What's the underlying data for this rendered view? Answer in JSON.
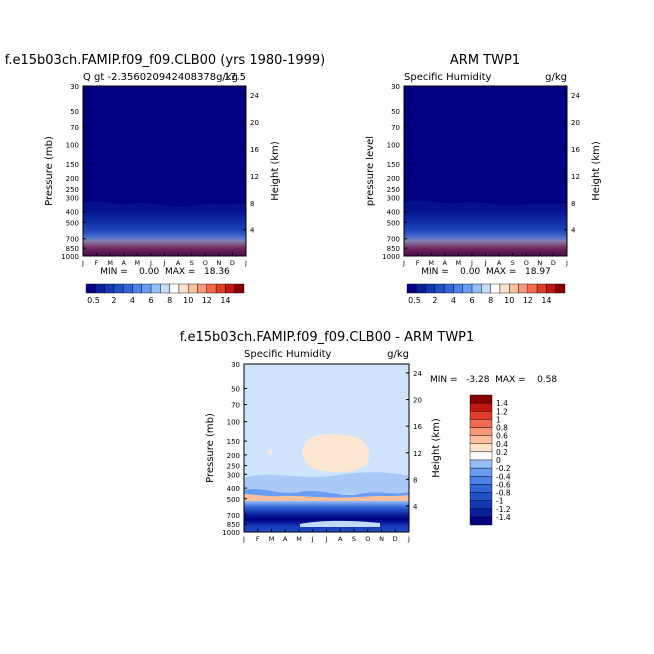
{
  "chart_data": [
    {
      "type": "heatmap",
      "title": "f.e15b03ch.FAMIP.f09_f09.CLB00 (yrs 1980-1999)",
      "subtitle_left": "Q  gt -2.356020942408378g/kg",
      "subtitle_right": "17.5",
      "ylabel": "Pressure (mb)",
      "ylabel_right": "Height (km)",
      "x_ticks": [
        "J",
        "F",
        "M",
        "A",
        "M",
        "J",
        "J",
        "A",
        "S",
        "O",
        "N",
        "D",
        "J"
      ],
      "y_ticks": [
        "30",
        "50",
        "70",
        "100",
        "150",
        "200",
        "250",
        "300",
        "400",
        "500",
        "700",
        "850",
        "1000"
      ],
      "y_ticks_right": [
        "24",
        "20",
        "16",
        "12",
        "8",
        "4"
      ],
      "stats": "MIN =    0.00  MAX =   18.36",
      "colorbar_labels": [
        "0.5",
        "2",
        "4",
        "6",
        "8",
        "10",
        "12",
        "14"
      ]
    },
    {
      "type": "heatmap",
      "title": "ARM TWP1",
      "subtitle_left": "Specific Humidity",
      "subtitle_right": "g/kg",
      "ylabel": "pressure  level",
      "ylabel_right": "Height (km)",
      "x_ticks": [
        "J",
        "F",
        "M",
        "A",
        "M",
        "J",
        "J",
        "A",
        "S",
        "O",
        "N",
        "D",
        "J"
      ],
      "y_ticks": [
        "30",
        "50",
        "70",
        "100",
        "150",
        "200",
        "250",
        "300",
        "400",
        "500",
        "700",
        "850",
        "1000"
      ],
      "y_ticks_right": [
        "24",
        "20",
        "16",
        "12",
        "8",
        "4"
      ],
      "stats": "MIN =    0.00  MAX =   18.97",
      "colorbar_labels": [
        "0.5",
        "2",
        "4",
        "6",
        "8",
        "10",
        "12",
        "14"
      ]
    },
    {
      "type": "heatmap",
      "title": "f.e15b03ch.FAMIP.f09_f09.CLB00 - ARM TWP1",
      "subtitle_left": "Specific Humidity",
      "subtitle_right": "g/kg",
      "ylabel": "Pressure (mb)",
      "ylabel_right": "Height (km)",
      "x_ticks": [
        "J",
        "F",
        "M",
        "A",
        "M",
        "J",
        "J",
        "A",
        "S",
        "O",
        "N",
        "D",
        "J"
      ],
      "y_ticks": [
        "30",
        "50",
        "70",
        "100",
        "150",
        "200",
        "250",
        "300",
        "400",
        "500",
        "700",
        "850",
        "1000"
      ],
      "y_ticks_right": [
        "24",
        "20",
        "16",
        "12",
        "8",
        "4"
      ],
      "stats": "MIN =   -3.28  MAX =    0.58",
      "colorbar_labels": [
        "1.4",
        "1.2",
        "1",
        "0.8",
        "0.6",
        "0.4",
        "0.2",
        "0",
        "-0.2",
        "-0.4",
        "-0.6",
        "-0.8",
        "-1",
        "-1.2",
        "-1.4"
      ]
    }
  ],
  "colors": {
    "abs_scale": [
      "#000080",
      "#0a1f9c",
      "#1437b4",
      "#2050c8",
      "#3266d8",
      "#4a80e8",
      "#6a9cf2",
      "#96bef8",
      "#c4dcfc",
      "#ffffff",
      "#fde0c8",
      "#fbbfa0",
      "#f89878",
      "#f06a50",
      "#e03c28",
      "#c01810",
      "#880000"
    ],
    "diff_scale": [
      "#000080",
      "#0a1f9c",
      "#1437b4",
      "#2050c8",
      "#3266d8",
      "#4a80e8",
      "#6a9cf2",
      "#96bef8",
      "#c4dcfc",
      "#ffffff",
      "#fde0c8",
      "#fbbfa0",
      "#f89878",
      "#f06a50",
      "#e03c28",
      "#c01810",
      "#880000"
    ],
    "diff_background": "#cfe4fb",
    "diff_anomaly": "#fde6d2"
  }
}
